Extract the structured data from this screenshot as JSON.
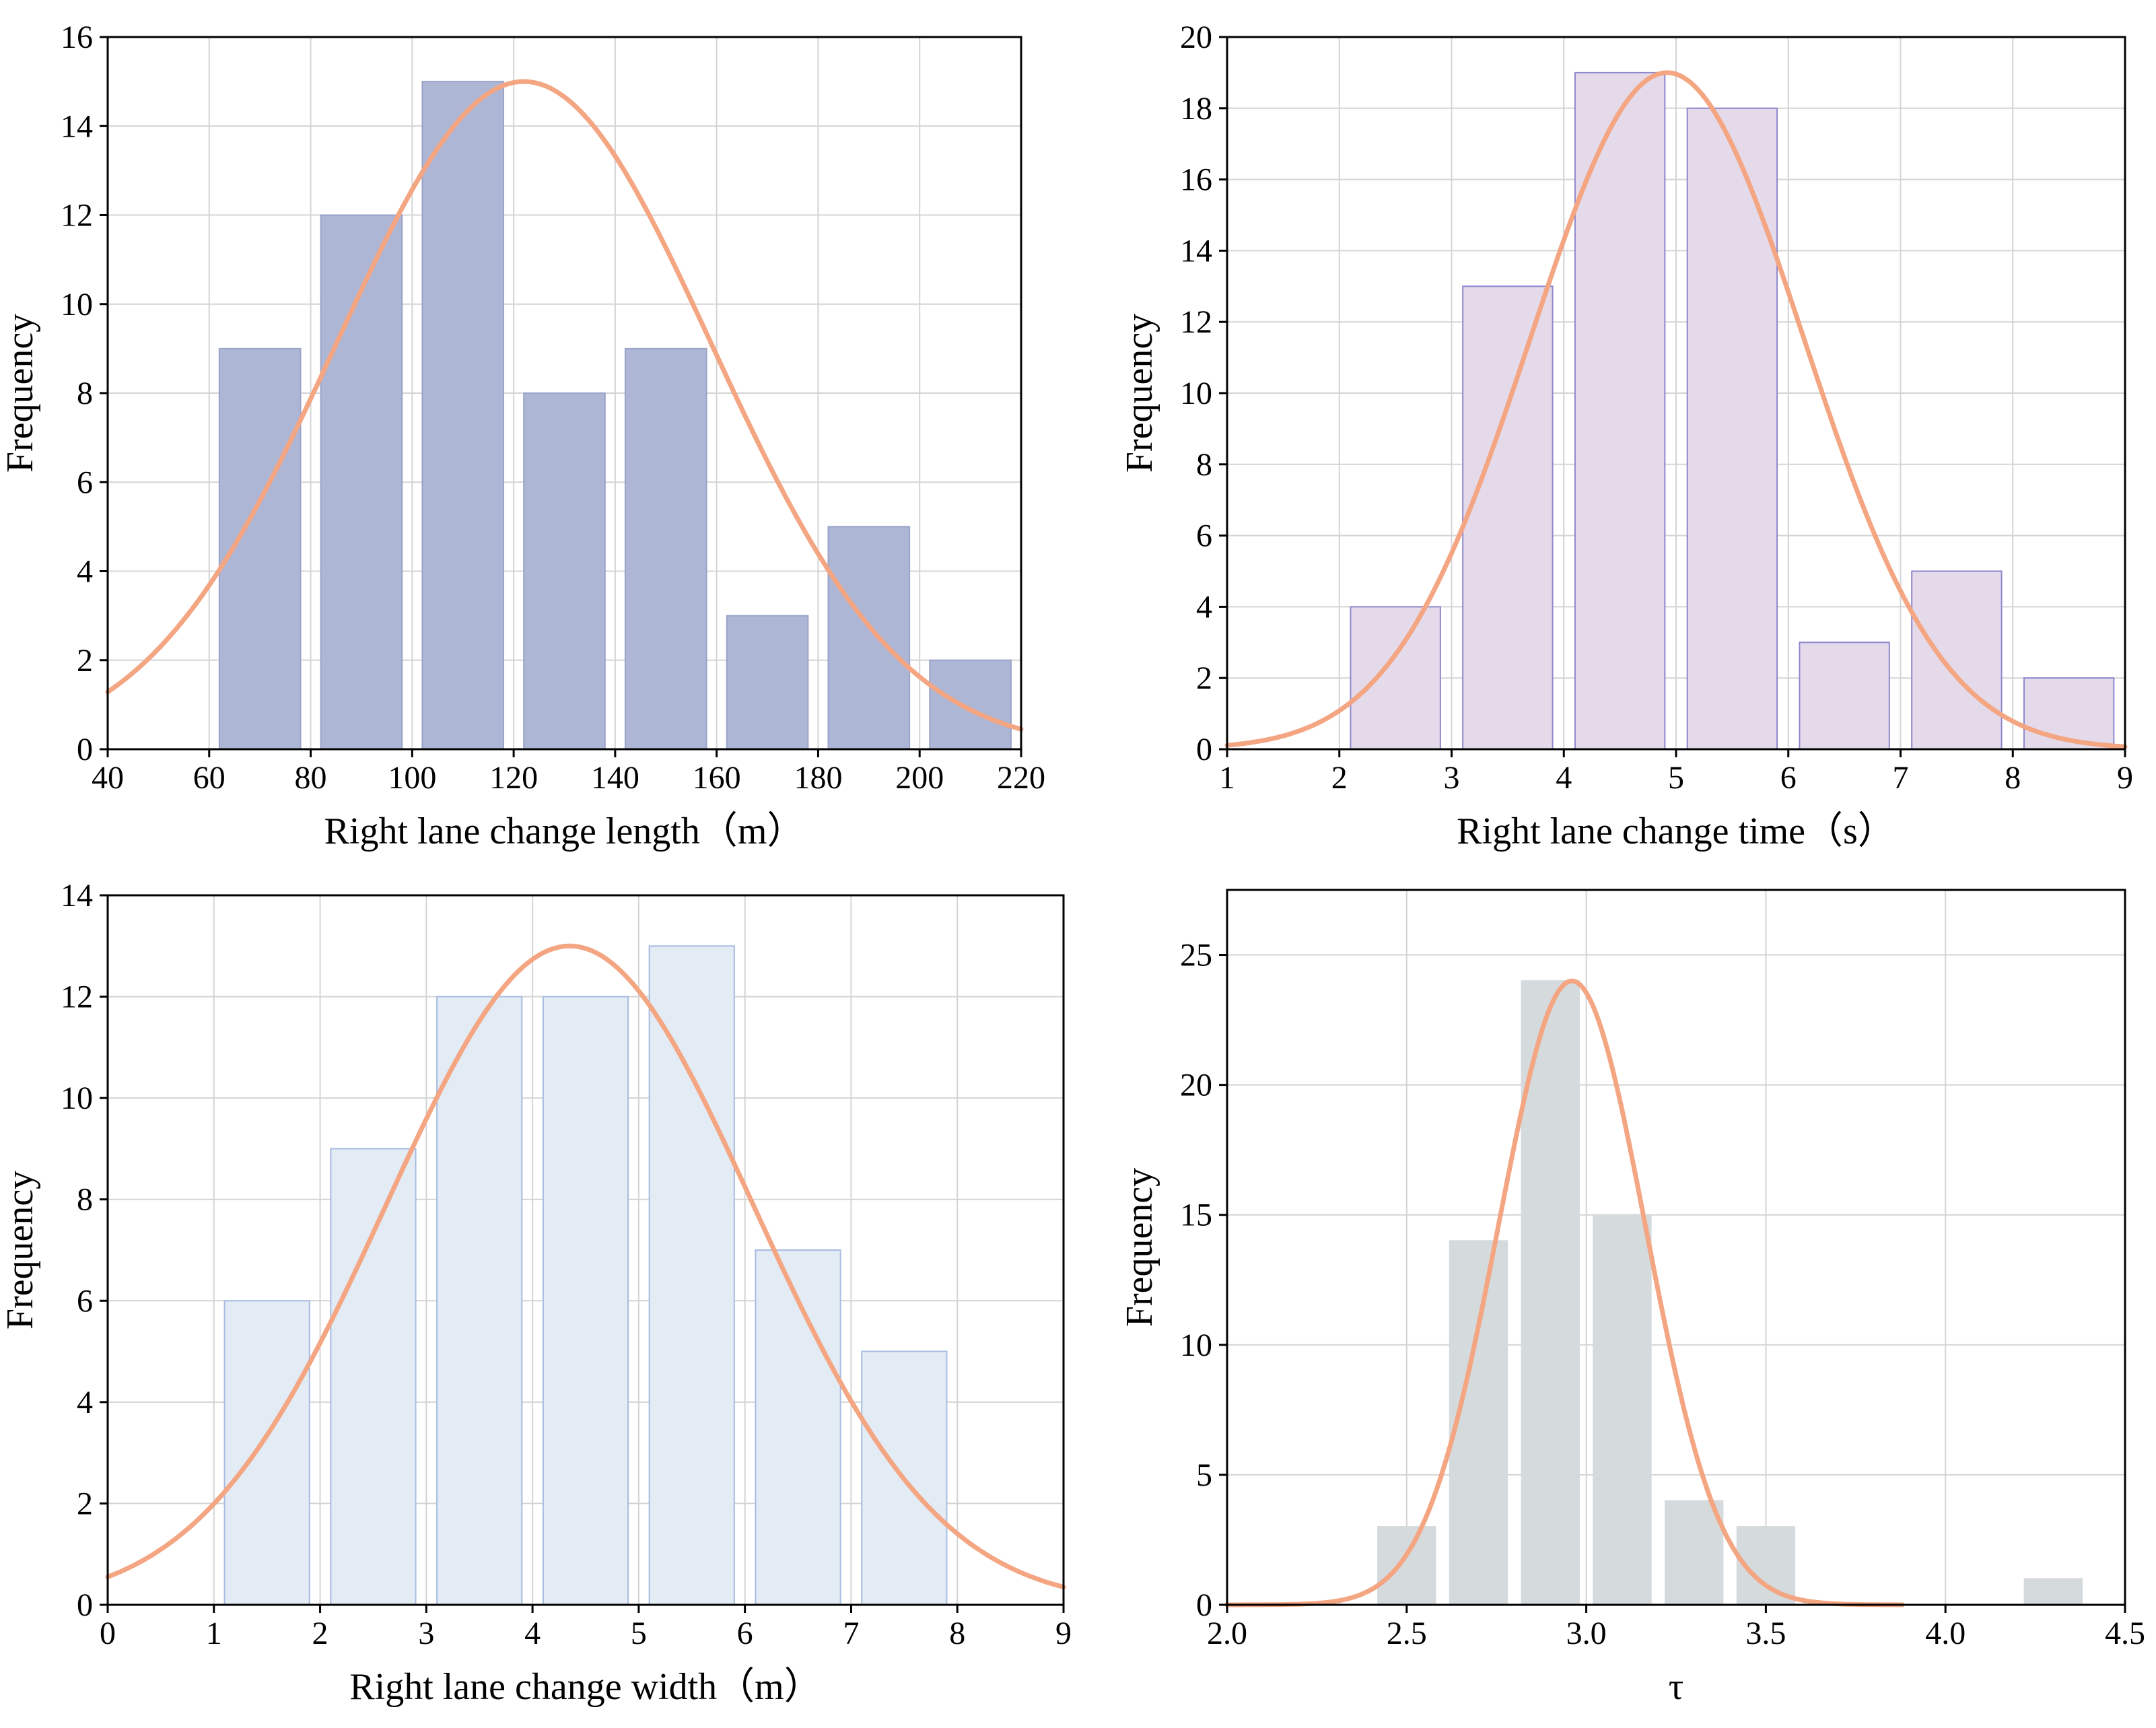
{
  "chart_data": [
    {
      "type": "bar",
      "xlabel": "Right lane change length（m）",
      "ylabel": "Frequency",
      "xlim": [
        40,
        220
      ],
      "ylim": [
        0,
        16
      ],
      "xticks": [
        "40",
        "60",
        "80",
        "100",
        "120",
        "140",
        "160",
        "180",
        "200",
        "220"
      ],
      "yticks": [
        "0",
        "2",
        "4",
        "6",
        "8",
        "10",
        "12",
        "14",
        "16"
      ],
      "bins": [
        [
          62,
          78
        ],
        [
          82,
          98
        ],
        [
          102,
          118
        ],
        [
          122,
          138
        ],
        [
          142,
          158
        ],
        [
          162,
          178
        ],
        [
          182,
          198
        ],
        [
          202,
          218
        ]
      ],
      "values": [
        9,
        12,
        15,
        8,
        9,
        3,
        5,
        2
      ],
      "fit_curve": {
        "type": "normal",
        "peak": 15,
        "mean": 122,
        "sd": 37
      },
      "bar_color": "#AEB6D5",
      "bar_edge": "#9AA3C8",
      "curve_color": "#F4A582",
      "grid": true
    },
    {
      "type": "bar",
      "xlabel": "Right lane change time（s）",
      "ylabel": "Frequency",
      "xlim": [
        1,
        9
      ],
      "ylim": [
        0,
        20
      ],
      "xticks": [
        "1",
        "2",
        "3",
        "4",
        "5",
        "6",
        "7",
        "8",
        "9"
      ],
      "yticks": [
        "0",
        "2",
        "4",
        "6",
        "8",
        "10",
        "12",
        "14",
        "16",
        "18",
        "20"
      ],
      "bins": [
        [
          2.1,
          2.9
        ],
        [
          3.1,
          3.9
        ],
        [
          4.1,
          4.9
        ],
        [
          5.1,
          5.9
        ],
        [
          6.1,
          6.9
        ],
        [
          7.1,
          7.9
        ],
        [
          8.1,
          8.9
        ]
      ],
      "values": [
        4,
        13,
        19,
        18,
        3,
        5,
        2
      ],
      "fit_curve": {
        "type": "normal",
        "peak": 19,
        "mean": 4.92,
        "sd": 1.22
      },
      "bar_color": "#E4DAEA",
      "bar_edge": "#8F87CC",
      "curve_color": "#F4A582",
      "grid": true
    },
    {
      "type": "bar",
      "xlabel": "Right lane change width（m）",
      "ylabel": "Frequency",
      "xlim": [
        0,
        9
      ],
      "ylim": [
        0,
        14
      ],
      "xticks": [
        "0",
        "1",
        "2",
        "3",
        "4",
        "5",
        "6",
        "7",
        "8",
        "9"
      ],
      "yticks": [
        "0",
        "2",
        "4",
        "6",
        "8",
        "10",
        "12",
        "14"
      ],
      "bins": [
        [
          1.1,
          1.9
        ],
        [
          2.1,
          2.9
        ],
        [
          3.1,
          3.9
        ],
        [
          4.1,
          4.9
        ],
        [
          5.1,
          5.9
        ],
        [
          6.1,
          6.9
        ],
        [
          7.1,
          7.9
        ]
      ],
      "values": [
        6,
        9,
        12,
        12,
        13,
        7,
        5
      ],
      "fit_curve": {
        "type": "normal",
        "peak": 13,
        "mean": 4.35,
        "sd": 1.73
      },
      "bar_color": "#E3EBF5",
      "bar_edge": "#A6BCE0",
      "curve_color": "#F4A582",
      "grid": true
    },
    {
      "type": "bar",
      "xlabel": "τ",
      "ylabel": "Frequency",
      "xlim": [
        2.0,
        4.5
      ],
      "ylim": [
        0,
        27.5
      ],
      "xticks": [
        "2.0",
        "2.5",
        "3.0",
        "3.5",
        "4.0",
        "4.5"
      ],
      "yticks": [
        "0",
        "5",
        "10",
        "15",
        "20",
        "25"
      ],
      "bins": [
        [
          2.42,
          2.58
        ],
        [
          2.62,
          2.78
        ],
        [
          2.82,
          2.98
        ],
        [
          3.02,
          3.18
        ],
        [
          3.22,
          3.38
        ],
        [
          3.42,
          3.58
        ],
        [
          4.22,
          4.38
        ]
      ],
      "values": [
        3,
        14,
        24,
        15,
        4,
        3,
        1
      ],
      "fit_curve": {
        "type": "normal",
        "peak": 24,
        "mean": 2.96,
        "sd": 0.205,
        "x_end": 3.88
      },
      "bar_color": "#D5DADD",
      "bar_edge": "#D5DADD",
      "curve_color": "#F4A582",
      "grid": true
    }
  ]
}
